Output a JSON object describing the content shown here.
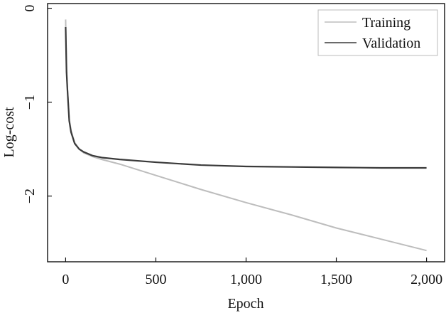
{
  "chart_data": {
    "type": "line",
    "title": "",
    "xlabel": "Epoch",
    "ylabel": "Log-cost",
    "xlim": [
      -100,
      2100
    ],
    "ylim": [
      -2.7,
      0.05
    ],
    "xticks": [
      0,
      500,
      1000,
      1500,
      2000
    ],
    "xtick_labels": [
      "0",
      "500",
      "1,000",
      "1,500",
      "2,000"
    ],
    "yticks": [
      0,
      -1,
      -2
    ],
    "ytick_labels": [
      "0",
      "−1",
      "−2"
    ],
    "grid": false,
    "legend_position": "top-right",
    "series": [
      {
        "name": "Training",
        "color": "#bdbdbd",
        "x": [
          0,
          5,
          10,
          20,
          30,
          50,
          75,
          100,
          150,
          200,
          300,
          500,
          750,
          1000,
          1250,
          1500,
          1750,
          2000
        ],
        "y": [
          -0.12,
          -0.65,
          -0.85,
          -1.18,
          -1.3,
          -1.43,
          -1.5,
          -1.54,
          -1.58,
          -1.61,
          -1.66,
          -1.78,
          -1.93,
          -2.07,
          -2.2,
          -2.34,
          -2.46,
          -2.58
        ]
      },
      {
        "name": "Validation",
        "color": "#3a3a3a",
        "x": [
          0,
          5,
          10,
          20,
          30,
          50,
          75,
          100,
          150,
          200,
          300,
          500,
          750,
          1000,
          1250,
          1500,
          1750,
          2000
        ],
        "y": [
          -0.2,
          -0.68,
          -0.87,
          -1.2,
          -1.32,
          -1.44,
          -1.5,
          -1.53,
          -1.57,
          -1.59,
          -1.61,
          -1.64,
          -1.67,
          -1.685,
          -1.69,
          -1.695,
          -1.7,
          -1.7
        ]
      }
    ]
  }
}
